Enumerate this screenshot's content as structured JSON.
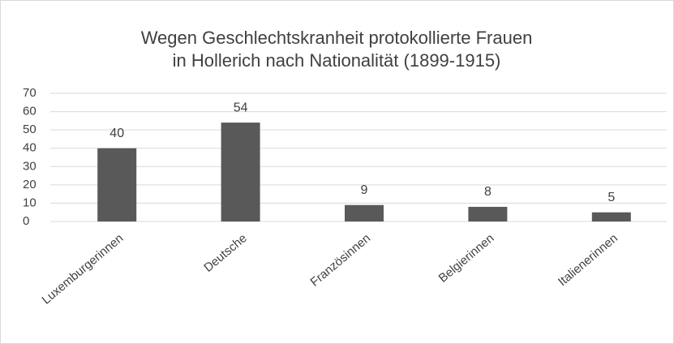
{
  "chart_data": {
    "type": "bar",
    "title": [
      "Wegen Geschlechtskranheit protokollierte Frauen",
      "in Hollerich nach Nationalität (1899-1915)"
    ],
    "categories": [
      "Luxemburgerinnen",
      "Deutsche",
      "Französinnen",
      "Belgierinnen",
      "Italienerinnen"
    ],
    "values": [
      40,
      54,
      9,
      8,
      5
    ],
    "color": "#595959",
    "ylim": [
      0,
      70
    ],
    "yticks": [
      0,
      10,
      20,
      30,
      40,
      50,
      60,
      70
    ],
    "grid": true
  }
}
